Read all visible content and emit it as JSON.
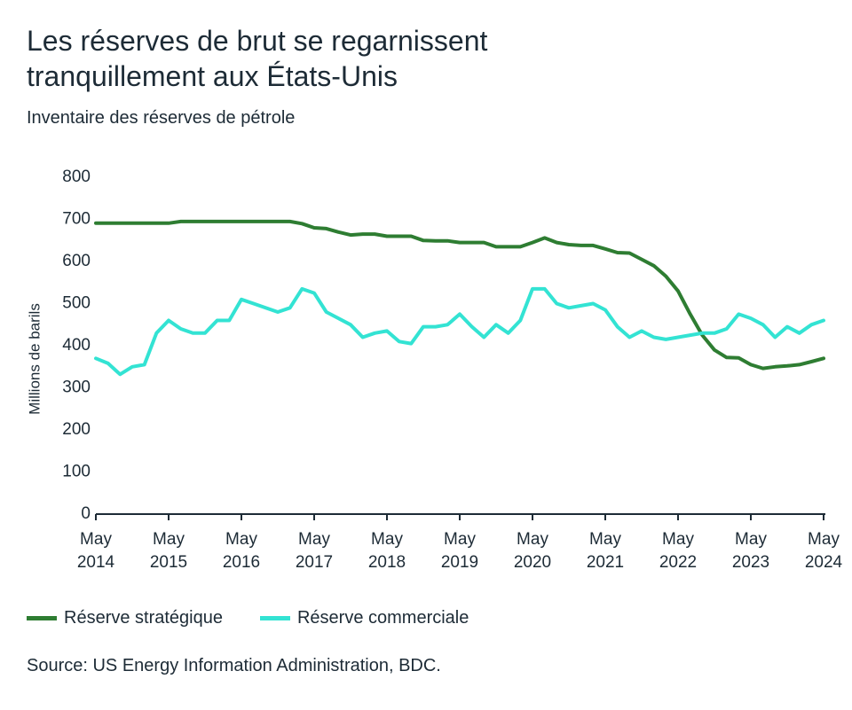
{
  "chart_data": {
    "type": "line",
    "title": "Les réserves de brut se regarnissent tranquillement aux États-Unis",
    "subtitle": "Inventaire des réserves de pétrole",
    "y_label": "Millions de barils",
    "source": "Source: US Energy Information Administration, BDC.",
    "x": [
      "2014-05",
      "2014-07",
      "2014-09",
      "2014-11",
      "2015-01",
      "2015-03",
      "2015-05",
      "2015-07",
      "2015-09",
      "2015-11",
      "2016-01",
      "2016-03",
      "2016-05",
      "2016-07",
      "2016-09",
      "2016-11",
      "2017-01",
      "2017-03",
      "2017-05",
      "2017-07",
      "2017-09",
      "2017-11",
      "2018-01",
      "2018-03",
      "2018-05",
      "2018-07",
      "2018-09",
      "2018-11",
      "2019-01",
      "2019-03",
      "2019-05",
      "2019-07",
      "2019-09",
      "2019-11",
      "2020-01",
      "2020-03",
      "2020-05",
      "2020-07",
      "2020-09",
      "2020-11",
      "2021-01",
      "2021-03",
      "2021-05",
      "2021-07",
      "2021-09",
      "2021-11",
      "2022-01",
      "2022-03",
      "2022-05",
      "2022-07",
      "2022-09",
      "2022-11",
      "2023-01",
      "2023-03",
      "2023-05",
      "2023-07",
      "2023-09",
      "2023-11",
      "2024-01",
      "2024-03",
      "2024-05"
    ],
    "series": [
      {
        "name": "Réserve stratégique",
        "color": "#2e7d32",
        "values": [
          691,
          691,
          691,
          691,
          691,
          691,
          691,
          695,
          695,
          695,
          695,
          695,
          695,
          695,
          695,
          695,
          695,
          690,
          680,
          678,
          670,
          663,
          665,
          665,
          660,
          660,
          660,
          650,
          649,
          649,
          645,
          645,
          645,
          635,
          635,
          635,
          645,
          656,
          645,
          640,
          638,
          638,
          630,
          621,
          620,
          605,
          590,
          565,
          530,
          475,
          425,
          390,
          372,
          371,
          355,
          346,
          350,
          352,
          355,
          362,
          370
        ]
      },
      {
        "name": "Réserve commerciale",
        "color": "#33e3d3",
        "values": [
          370,
          358,
          332,
          350,
          355,
          430,
          460,
          440,
          430,
          430,
          460,
          460,
          510,
          500,
          490,
          480,
          490,
          535,
          525,
          480,
          465,
          450,
          420,
          430,
          435,
          410,
          405,
          445,
          445,
          450,
          475,
          445,
          420,
          450,
          430,
          460,
          535,
          535,
          500,
          490,
          495,
          500,
          485,
          445,
          420,
          435,
          420,
          415,
          420,
          425,
          430,
          430,
          440,
          475,
          465,
          450,
          420,
          445,
          430,
          450,
          460
        ]
      }
    ],
    "xlim": [
      "2014-05",
      "2024-05"
    ],
    "xticks": [
      {
        "value": "2014-05",
        "label": "May 2014"
      },
      {
        "value": "2015-05",
        "label": "May 2015"
      },
      {
        "value": "2016-05",
        "label": "May 2016"
      },
      {
        "value": "2017-05",
        "label": "May 2017"
      },
      {
        "value": "2018-05",
        "label": "May 2018"
      },
      {
        "value": "2019-05",
        "label": "May 2019"
      },
      {
        "value": "2020-05",
        "label": "May 2020"
      },
      {
        "value": "2021-05",
        "label": "May 2021"
      },
      {
        "value": "2022-05",
        "label": "May 2022"
      },
      {
        "value": "2023-05",
        "label": "May 2023"
      },
      {
        "value": "2024-05",
        "label": "May 2024"
      }
    ],
    "ylim": [
      0,
      800
    ],
    "yticks": [
      0,
      100,
      200,
      300,
      400,
      500,
      600,
      700,
      800
    ],
    "grid": false,
    "legend": "bottom"
  }
}
